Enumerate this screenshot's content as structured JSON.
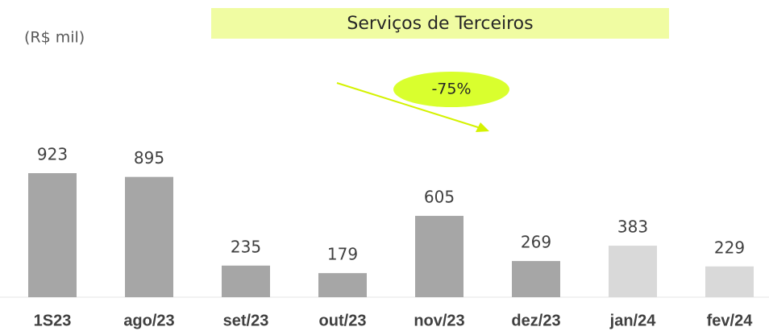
{
  "chart_data": {
    "type": "bar",
    "title": "Serviços de Terceiros",
    "unit_label": "(R$ mil)",
    "annotation": "-75%",
    "categories": [
      "1S23",
      "ago/23",
      "set/23",
      "out/23",
      "nov/23",
      "dez/23",
      "jan/24",
      "fev/24"
    ],
    "values": [
      923,
      895,
      235,
      179,
      605,
      269,
      383,
      229
    ],
    "colors": [
      "#a6a6a6",
      "#a6a6a6",
      "#a6a6a6",
      "#a6a6a6",
      "#a6a6a6",
      "#a6a6a6",
      "#d9d9d9",
      "#d9d9d9"
    ]
  }
}
